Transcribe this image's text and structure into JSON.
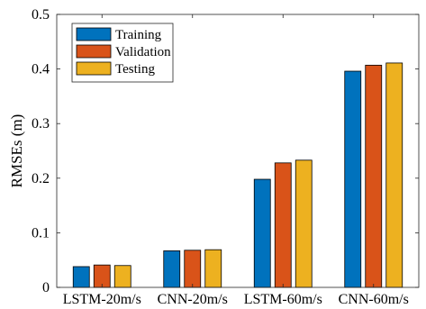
{
  "chart_data": {
    "type": "bar",
    "title": "",
    "xlabel": "",
    "ylabel": "RMSEs (m)",
    "ylim": [
      0,
      0.5
    ],
    "yticks": [
      "0",
      "0.1",
      "0.2",
      "0.3",
      "0.4",
      "0.5"
    ],
    "yticks_values": [
      0,
      0.1,
      0.2,
      0.3,
      0.4,
      0.5
    ],
    "categories": [
      "LSTM-20m/s",
      "CNN-20m/s",
      "LSTM-60m/s",
      "CNN-60m/s"
    ],
    "series": [
      {
        "name": "Training",
        "color": "#0072BD",
        "values": [
          0.038,
          0.067,
          0.198,
          0.396
        ]
      },
      {
        "name": "Validation",
        "color": "#D95319",
        "values": [
          0.041,
          0.068,
          0.228,
          0.407
        ]
      },
      {
        "name": "Testing",
        "color": "#EDB120",
        "values": [
          0.04,
          0.069,
          0.233,
          0.411
        ]
      }
    ],
    "legend_position": "top-left",
    "grid": false
  }
}
